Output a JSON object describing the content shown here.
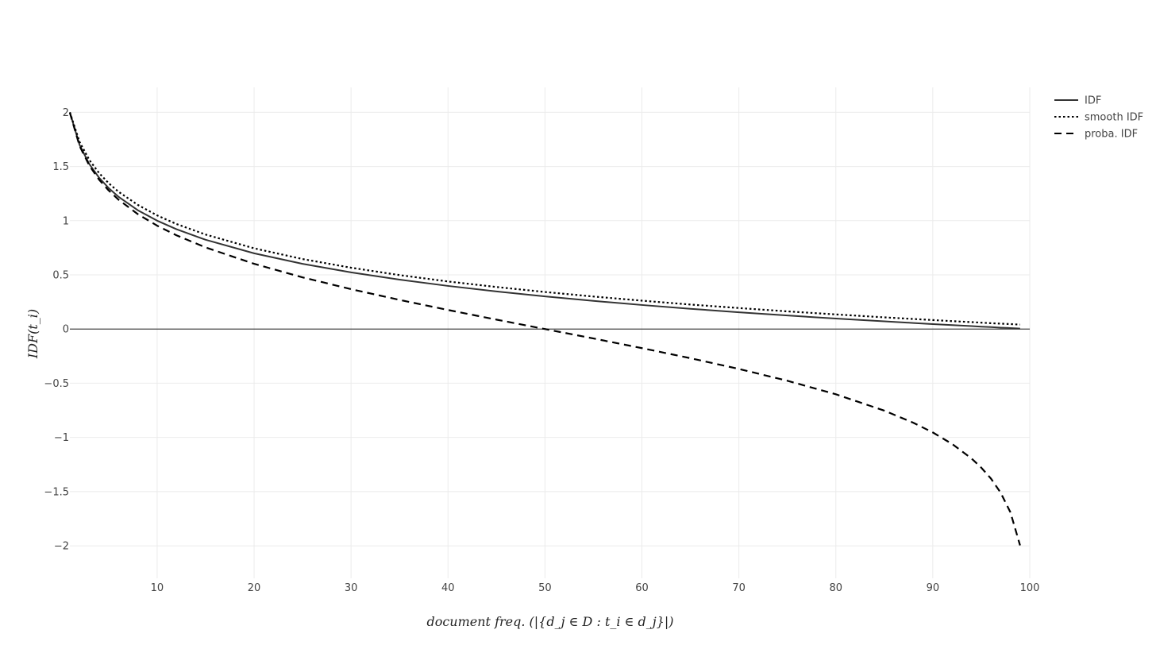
{
  "chart_data": {
    "type": "line",
    "title": "",
    "xlabel": "document freq. (|{d_j ∈ D : t_i ∈ d_j}|)",
    "ylabel": "IDF(t_i)",
    "xlim": [
      1,
      100
    ],
    "ylim": [
      -2.3,
      2.23
    ],
    "grid": true,
    "legend_position": "top-right",
    "x_ticks": [
      10,
      20,
      30,
      40,
      50,
      60,
      70,
      80,
      90,
      100
    ],
    "x_tick_labels": [
      "10",
      "20",
      "30",
      "40",
      "50",
      "60",
      "70",
      "80",
      "90",
      "100"
    ],
    "y_ticks": [
      2,
      1.5,
      1,
      0.5,
      0,
      -0.5,
      -1,
      -1.5,
      -2
    ],
    "y_tick_labels": [
      "2",
      "1.5",
      "1",
      "0.5",
      "0",
      "−0.5",
      "−1",
      "−1.5",
      "−2"
    ],
    "x": [
      1,
      2,
      3,
      4,
      5,
      6,
      8,
      10,
      12,
      15,
      20,
      25,
      30,
      35,
      40,
      45,
      50,
      55,
      60,
      65,
      70,
      75,
      80,
      85,
      88,
      90,
      92,
      94,
      95,
      96,
      97,
      98,
      99
    ],
    "series": [
      {
        "name": "IDF",
        "style": "solid",
        "color": "#333333",
        "values": [
          2.0,
          1.699,
          1.523,
          1.398,
          1.301,
          1.222,
          1.097,
          1.0,
          0.921,
          0.824,
          0.699,
          0.602,
          0.523,
          0.456,
          0.398,
          0.347,
          0.301,
          0.26,
          0.222,
          0.187,
          0.155,
          0.125,
          0.097,
          0.071,
          0.056,
          0.046,
          0.036,
          0.027,
          0.022,
          0.018,
          0.013,
          0.009,
          0.004
        ]
      },
      {
        "name": "smooth IDF",
        "style": "dotted",
        "color": "#000000",
        "values": [
          2.0,
          1.727,
          1.561,
          1.441,
          1.346,
          1.268,
          1.146,
          1.049,
          0.969,
          0.872,
          0.745,
          0.646,
          0.566,
          0.498,
          0.439,
          0.388,
          0.342,
          0.3,
          0.262,
          0.226,
          0.194,
          0.163,
          0.135,
          0.108,
          0.093,
          0.083,
          0.073,
          0.064,
          0.059,
          0.054,
          0.05,
          0.046,
          0.041
        ]
      },
      {
        "name": "proba. IDF",
        "style": "dashed",
        "color": "#000000",
        "values": [
          1.996,
          1.69,
          1.51,
          1.38,
          1.279,
          1.195,
          1.061,
          0.954,
          0.865,
          0.753,
          0.602,
          0.477,
          0.368,
          0.269,
          0.176,
          0.087,
          0.0,
          -0.087,
          -0.176,
          -0.269,
          -0.368,
          -0.477,
          -0.602,
          -0.753,
          -0.865,
          -0.954,
          -1.061,
          -1.195,
          -1.279,
          -1.38,
          -1.51,
          -1.69,
          -1.996
        ]
      }
    ]
  }
}
